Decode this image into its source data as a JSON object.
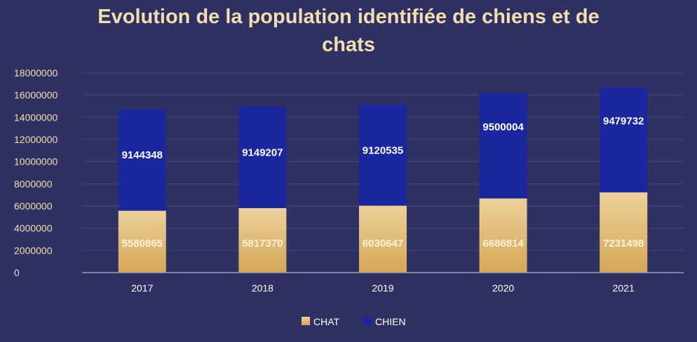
{
  "chart_data": {
    "type": "bar",
    "stacked": true,
    "title": "Evolution de la population identifiée de chiens et de chats",
    "title_lines": [
      "Evolution de la population identifiée de chiens et de",
      "chats"
    ],
    "categories": [
      "2017",
      "2018",
      "2019",
      "2020",
      "2021"
    ],
    "series": [
      {
        "name": "CHAT",
        "values": [
          5580865,
          5817370,
          6030647,
          6686814,
          7231498
        ],
        "color": "#e0b770"
      },
      {
        "name": "CHIEN",
        "values": [
          9144348,
          9149207,
          9120535,
          9500004,
          9479732
        ],
        "color": "#1b279e"
      }
    ],
    "ylim": [
      0,
      18000000
    ],
    "yticks": [
      "0",
      "2000000",
      "4000000",
      "6000000",
      "8000000",
      "10000000",
      "12000000",
      "14000000",
      "16000000",
      "18000000"
    ],
    "grid": true,
    "legend": "bottom",
    "xlabel": "",
    "ylabel": ""
  }
}
